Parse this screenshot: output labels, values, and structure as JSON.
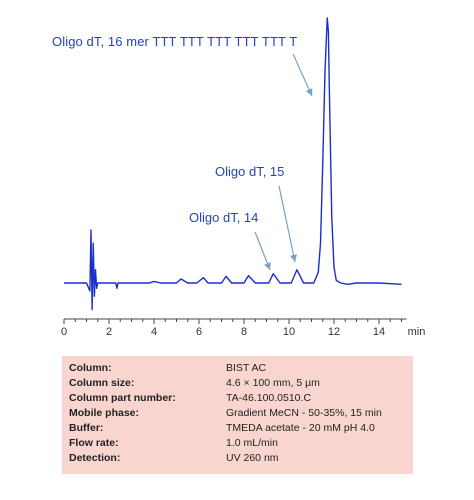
{
  "chart_data": {
    "type": "line",
    "xlabel": "min",
    "xlim": [
      0,
      15
    ],
    "xticks": [
      0,
      2,
      4,
      6,
      8,
      10,
      12,
      14
    ],
    "series": [
      {
        "x": [
          0.0,
          0.5,
          1.0,
          1.15,
          1.2,
          1.25,
          1.3,
          1.35,
          1.4,
          1.45,
          1.5,
          2.0,
          2.3,
          2.35,
          2.4,
          2.5,
          3.0,
          3.5,
          3.8,
          4.0,
          4.3,
          4.6,
          5.0,
          5.2,
          5.5,
          5.9,
          6.2,
          6.4,
          6.7,
          7.0,
          7.2,
          7.45,
          7.7,
          8.0,
          8.2,
          8.5,
          8.8,
          9.1,
          9.3,
          9.6,
          9.9,
          10.1,
          10.35,
          10.65,
          10.9,
          11.1,
          11.3,
          11.4,
          11.5,
          11.6,
          11.7,
          11.75,
          11.8,
          11.9,
          12.0,
          12.1,
          12.3,
          12.6,
          13.0,
          14.0,
          15.0
        ],
        "y": [
          0.0,
          0.0,
          0.0,
          -0.03,
          0.2,
          -0.1,
          0.15,
          -0.05,
          0.05,
          -0.02,
          0.0,
          0.0,
          0.0,
          -0.02,
          0.0,
          0.0,
          0.0,
          0.0,
          0.0,
          0.006,
          0.0,
          0.0,
          0.0,
          0.015,
          0.0,
          0.0,
          0.02,
          0.0,
          0.0,
          0.0,
          0.025,
          0.0,
          0.0,
          0.0,
          0.028,
          0.0,
          0.0,
          0.0,
          0.035,
          0.0,
          0.0,
          0.0,
          0.05,
          0.0,
          0.0,
          0.0,
          0.04,
          0.15,
          0.45,
          0.8,
          1.0,
          0.95,
          0.7,
          0.25,
          0.06,
          0.01,
          0.0,
          -0.005,
          0.0,
          0.0,
          -0.005
        ]
      }
    ]
  },
  "annotations": {
    "peak16": "Oligo dT, 16  mer TTT TTT TTT TTT TTT T",
    "peak15": "Oligo dT, 15",
    "peak14": "Oligo dT, 14"
  },
  "colors": {
    "trace": "#1a2ecc",
    "annotation": "#2244bb",
    "table_bg": "#f9d5cf",
    "arrow": "#7aa0c8"
  },
  "conditions": [
    {
      "label": "Column:",
      "value": "BIST AC"
    },
    {
      "label": "Column size:",
      "value": "4.6 × 100 mm, 5 µm"
    },
    {
      "label": "Column part number:",
      "value": "TA-46.100.0510.C"
    },
    {
      "label": "Mobile phase:",
      "value": "Gradient  MeCN  - 50-35%, 15 min"
    },
    {
      "label": "Buffer:",
      "value": "TMEDA acetate - 20 mM  pH 4.0"
    },
    {
      "label": "Flow rate:",
      "value": "1.0 mL/min"
    },
    {
      "label": "Detection:",
      "value": "UV 260 nm"
    }
  ]
}
